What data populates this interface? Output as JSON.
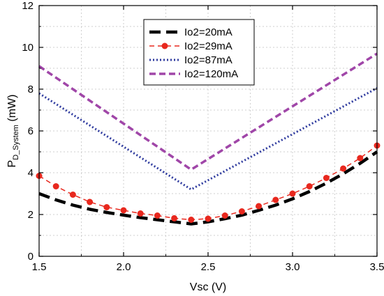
{
  "chart_data": {
    "type": "line",
    "xlabel": "Vsc (V)",
    "ylabel_main": "P",
    "ylabel_sub": "D_System",
    "ylabel_unit": " (mW)",
    "xlim": [
      1.5,
      3.5
    ],
    "ylim": [
      0,
      12
    ],
    "xticks": [
      1.5,
      2.0,
      2.5,
      3.0,
      3.5
    ],
    "xtick_labels": [
      "1.5",
      "2.0",
      "2.5",
      "3.0",
      "3.5"
    ],
    "yticks": [
      0,
      2,
      4,
      6,
      8,
      10,
      12
    ],
    "ytick_labels": [
      "0",
      "2",
      "4",
      "6",
      "8",
      "10",
      "12"
    ],
    "grid": true,
    "legend_position": "top-center",
    "series": [
      {
        "name": "Io2=20mA",
        "color": "#000000",
        "style": "long-dash",
        "markers": false,
        "x": [
          1.5,
          1.6,
          1.7,
          1.8,
          1.9,
          2.0,
          2.1,
          2.2,
          2.3,
          2.4,
          2.5,
          2.6,
          2.7,
          2.8,
          2.9,
          3.0,
          3.1,
          3.2,
          3.3,
          3.4,
          3.5
        ],
        "y": [
          3.0,
          2.7,
          2.45,
          2.25,
          2.1,
          1.97,
          1.85,
          1.75,
          1.65,
          1.55,
          1.65,
          1.8,
          1.97,
          2.2,
          2.45,
          2.75,
          3.1,
          3.5,
          3.95,
          4.45,
          5.0
        ]
      },
      {
        "name": "Io2=29mA",
        "color": "#e8281e",
        "style": "dash-dot-markers",
        "markers": true,
        "x": [
          1.5,
          1.6,
          1.7,
          1.8,
          1.9,
          2.0,
          2.1,
          2.2,
          2.3,
          2.4,
          2.5,
          2.6,
          2.7,
          2.8,
          2.9,
          3.0,
          3.1,
          3.2,
          3.3,
          3.4,
          3.5
        ],
        "y": [
          3.85,
          3.35,
          2.95,
          2.6,
          2.35,
          2.2,
          2.05,
          1.95,
          1.82,
          1.75,
          1.8,
          1.95,
          2.15,
          2.4,
          2.7,
          3.0,
          3.35,
          3.75,
          4.2,
          4.7,
          5.3
        ]
      },
      {
        "name": "Io2=87mA",
        "color": "#2e3a9e",
        "style": "dotted",
        "markers": false,
        "x": [
          1.5,
          2.4,
          3.5
        ],
        "y": [
          7.8,
          3.2,
          8.05
        ]
      },
      {
        "name": "Io2=120mA",
        "color": "#a046a8",
        "style": "short-dash",
        "markers": false,
        "x": [
          1.5,
          2.4,
          3.5
        ],
        "y": [
          9.1,
          4.15,
          9.7
        ]
      }
    ]
  }
}
